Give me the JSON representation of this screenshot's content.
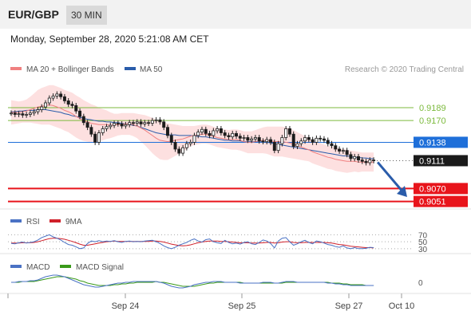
{
  "header": {
    "pair": "EUR/GBP",
    "timeframe": "30 MIN",
    "datetime": "Monday, September 28, 2020 5:21:08 AM CET"
  },
  "colors": {
    "ma20": "#f08080",
    "bollinger_fill": "#fde0e0",
    "ma50": "#2a5caa",
    "resistance": "#7cba3d",
    "pivot": "#1e6fd9",
    "support": "#e8141b",
    "last": "#1a1a1a",
    "rsi": "#4a72c4",
    "rsi_ma": "#d0202a",
    "macd": "#4a72c4",
    "macd_signal": "#3a9a1a",
    "candle_up": "#ffffff",
    "candle_down": "#1a1a1a"
  },
  "chart_data": [
    {
      "type": "candlestick",
      "legend": [
        {
          "name": "MA 20 + Bollinger Bands",
          "color": "#f08080"
        },
        {
          "name": "MA 50",
          "color": "#2a5caa"
        }
      ],
      "credit": "Research © 2020 Trading Central",
      "x_ticks": [
        "Sep 24",
        "Sep 25",
        "Sep 27",
        "Oct 10"
      ],
      "ylim": [
        0.904,
        0.923
      ],
      "levels": [
        {
          "label": "0.9189",
          "value": 0.9189,
          "kind": "resistance"
        },
        {
          "label": "0.9170",
          "value": 0.917,
          "kind": "resistance"
        },
        {
          "label": "0.9138",
          "value": 0.9138,
          "kind": "pivot"
        },
        {
          "label": "0.9111",
          "value": 0.9111,
          "kind": "last"
        },
        {
          "label": "0.9070",
          "value": 0.907,
          "kind": "support"
        },
        {
          "label": "0.9051",
          "value": 0.9051,
          "kind": "support"
        }
      ],
      "close": [
        0.9181,
        0.9179,
        0.918,
        0.9178,
        0.9179,
        0.9181,
        0.9183,
        0.9186,
        0.919,
        0.9196,
        0.9203,
        0.9206,
        0.9209,
        0.9205,
        0.9199,
        0.9194,
        0.9192,
        0.9184,
        0.9176,
        0.9167,
        0.916,
        0.915,
        0.9138,
        0.9152,
        0.9158,
        0.9161,
        0.9163,
        0.9166,
        0.9165,
        0.9162,
        0.9164,
        0.9167,
        0.9166,
        0.9168,
        0.9165,
        0.9167,
        0.9166,
        0.917,
        0.9171,
        0.9168,
        0.916,
        0.9148,
        0.9138,
        0.9128,
        0.9122,
        0.913,
        0.9136,
        0.9138,
        0.9148,
        0.9153,
        0.9157,
        0.9151,
        0.9148,
        0.9155,
        0.9158,
        0.9152,
        0.9148,
        0.9146,
        0.9151,
        0.9147,
        0.9144,
        0.9145,
        0.9141,
        0.9143,
        0.9145,
        0.914,
        0.9139,
        0.9142,
        0.9138,
        0.9126,
        0.9136,
        0.9145,
        0.9158,
        0.915,
        0.9132,
        0.9136,
        0.914,
        0.9145,
        0.9142,
        0.9138,
        0.9144,
        0.9143,
        0.9141,
        0.9136,
        0.9133,
        0.9128,
        0.9125,
        0.9126,
        0.912,
        0.9114,
        0.9117,
        0.9112,
        0.911,
        0.9108,
        0.9112,
        0.9111
      ],
      "ma20": [
        0.9182,
        0.9182,
        0.9182,
        0.9183,
        0.9184,
        0.9186,
        0.9188,
        0.919,
        0.9191,
        0.9192,
        0.9193,
        0.9192,
        0.919,
        0.9188,
        0.9185,
        0.9183,
        0.918,
        0.9176,
        0.9173,
        0.917,
        0.9168,
        0.9166,
        0.9165,
        0.9164,
        0.9164,
        0.9164,
        0.9163,
        0.9163,
        0.9164,
        0.9165,
        0.9165,
        0.9165,
        0.9164,
        0.9162,
        0.9159,
        0.9156,
        0.9152,
        0.9148,
        0.9144,
        0.9141,
        0.914,
        0.9139,
        0.914,
        0.9141,
        0.9142,
        0.9143,
        0.9145,
        0.9147,
        0.9148,
        0.9149,
        0.915,
        0.915,
        0.9149,
        0.9147,
        0.9145,
        0.9144,
        0.9143,
        0.9142,
        0.9142,
        0.9142,
        0.9141,
        0.9139,
        0.9138,
        0.9138,
        0.9139,
        0.914,
        0.9141,
        0.9141,
        0.914,
        0.9139,
        0.9139,
        0.9139,
        0.9138,
        0.9137,
        0.9135,
        0.9133,
        0.9131,
        0.9129,
        0.9127,
        0.9124,
        0.9122,
        0.912,
        0.9118,
        0.9116,
        0.9115,
        0.9113,
        0.9112,
        0.9111,
        0.911,
        0.911,
        0.911,
        0.9109,
        0.9109,
        0.9109,
        0.9109,
        0.9109
      ],
      "ma50": [
        0.9183,
        0.9183,
        0.9184,
        0.9184,
        0.9185,
        0.9185,
        0.9185,
        0.9186,
        0.9186,
        0.9186,
        0.9185,
        0.9184,
        0.9183,
        0.9182,
        0.918,
        0.9179,
        0.9177,
        0.9176,
        0.9175,
        0.9173,
        0.9172,
        0.9171,
        0.917,
        0.9169,
        0.9169,
        0.9168,
        0.9168,
        0.9167,
        0.9167,
        0.9166,
        0.9165,
        0.9164,
        0.9163,
        0.9162,
        0.916,
        0.9158,
        0.9156,
        0.9154,
        0.9152,
        0.9151,
        0.915,
        0.9149,
        0.9149,
        0.9149,
        0.9148,
        0.9148,
        0.9148,
        0.9148,
        0.9147,
        0.9147,
        0.9146,
        0.9146,
        0.9145,
        0.9144,
        0.9143,
        0.9142,
        0.9141,
        0.9141,
        0.914,
        0.914,
        0.914,
        0.9139,
        0.9139,
        0.9139,
        0.9139,
        0.9139,
        0.9138,
        0.9138,
        0.9137,
        0.9136,
        0.9135,
        0.9134,
        0.9133,
        0.9132,
        0.9131,
        0.913,
        0.9129,
        0.9128,
        0.9127,
        0.9126,
        0.9125,
        0.9124,
        0.9123,
        0.9122,
        0.9121,
        0.912,
        0.9119,
        0.9118,
        0.9118,
        0.9117,
        0.9116,
        0.9116,
        0.9115,
        0.9115,
        0.9114,
        0.9114
      ],
      "bb_width": [
        0.0018,
        0.0017,
        0.0016,
        0.0016,
        0.0017,
        0.0019,
        0.0022,
        0.0025,
        0.0027,
        0.0028,
        0.0029,
        0.003,
        0.003,
        0.003,
        0.003,
        0.003,
        0.0031,
        0.0031,
        0.0031,
        0.003,
        0.0029,
        0.0028,
        0.0027,
        0.0025,
        0.0023,
        0.0021,
        0.0019,
        0.0017,
        0.0016,
        0.0016,
        0.0016,
        0.0016,
        0.0017,
        0.0018,
        0.002,
        0.0022,
        0.0024,
        0.0026,
        0.0027,
        0.0028,
        0.0028,
        0.0027,
        0.0025,
        0.0023,
        0.0021,
        0.0019,
        0.0017,
        0.0015,
        0.0014,
        0.0014,
        0.0014,
        0.0014,
        0.0014,
        0.0014,
        0.0014,
        0.0014,
        0.0014,
        0.0014,
        0.0015,
        0.0015,
        0.0015,
        0.0015,
        0.0016,
        0.0016,
        0.0017,
        0.0018,
        0.0019,
        0.002,
        0.0021,
        0.0022,
        0.0022,
        0.0022,
        0.0022,
        0.0022,
        0.0021,
        0.002,
        0.0019,
        0.0018,
        0.0017,
        0.0017,
        0.0017,
        0.0017,
        0.0017,
        0.0017,
        0.0017,
        0.0017,
        0.0017,
        0.0017,
        0.0017,
        0.0016,
        0.0015,
        0.0015,
        0.0014,
        0.0014,
        0.0014,
        0.0014
      ]
    },
    {
      "type": "line",
      "legend": [
        {
          "name": "RSI",
          "color": "#4a72c4"
        },
        {
          "name": "9MA",
          "color": "#d0202a"
        }
      ],
      "y_ticks": [
        "70",
        "50",
        "30"
      ],
      "ylim": [
        25,
        80
      ],
      "rsi": [
        45,
        44,
        47,
        49,
        46,
        48,
        50,
        55,
        62,
        66,
        70,
        64,
        60,
        55,
        48,
        42,
        40,
        35,
        30,
        32,
        45,
        52,
        50,
        53,
        50,
        52,
        51,
        53,
        50,
        48,
        51,
        52,
        50,
        51,
        50,
        52,
        53,
        54,
        50,
        45,
        38,
        33,
        30,
        34,
        40,
        44,
        48,
        54,
        58,
        52,
        49,
        56,
        58,
        50,
        47,
        45,
        54,
        48,
        44,
        46,
        43,
        48,
        50,
        44,
        42,
        48,
        55,
        52,
        45,
        32,
        52,
        60,
        62,
        50,
        40,
        44,
        50,
        54,
        48,
        44,
        52,
        50,
        46,
        42,
        40,
        36,
        34,
        38,
        32,
        30,
        33,
        30,
        30,
        31,
        34,
        33
      ],
      "rsi_ma": [
        46,
        46,
        46,
        47,
        47,
        47,
        48,
        50,
        53,
        56,
        59,
        60,
        60,
        59,
        57,
        54,
        51,
        47,
        43,
        40,
        40,
        42,
        44,
        46,
        48,
        50,
        51,
        52,
        51,
        51,
        51,
        51,
        51,
        51,
        51,
        51,
        51,
        52,
        52,
        51,
        49,
        46,
        43,
        41,
        39,
        38,
        39,
        41,
        44,
        47,
        49,
        51,
        52,
        52,
        52,
        51,
        51,
        50,
        49,
        48,
        47,
        47,
        47,
        46,
        46,
        46,
        47,
        48,
        48,
        46,
        47,
        49,
        50,
        50,
        48,
        47,
        47,
        48,
        48,
        48,
        48,
        48,
        48,
        47,
        46,
        44,
        42,
        41,
        39,
        37,
        36,
        35,
        34,
        33,
        33,
        32
      ]
    },
    {
      "type": "line",
      "legend": [
        {
          "name": "MACD",
          "color": "#4a72c4"
        },
        {
          "name": "MACD Signal",
          "color": "#3a9a1a"
        }
      ],
      "y_ticks": [
        "0"
      ],
      "ylim": [
        -0.0012,
        0.0012
      ],
      "macd": [
        0.0,
        0.0,
        0.0001,
        0.0001,
        0.0001,
        0.0002,
        0.0002,
        0.0003,
        0.0005,
        0.0007,
        0.0008,
        0.0009,
        0.0009,
        0.0008,
        0.0007,
        0.0005,
        0.0003,
        0.0001,
        -0.0001,
        -0.0003,
        -0.0004,
        -0.0005,
        -0.0006,
        -0.0006,
        -0.0005,
        -0.0004,
        -0.0003,
        -0.0002,
        -0.0001,
        -0.0001,
        0.0,
        0.0,
        0.0001,
        0.0001,
        0.0001,
        0.0001,
        0.0001,
        0.0001,
        0.0001,
        0.0,
        -0.0001,
        -0.0003,
        -0.0005,
        -0.0006,
        -0.0007,
        -0.0007,
        -0.0006,
        -0.0005,
        -0.0003,
        -0.0002,
        -0.0001,
        0.0,
        0.0,
        0.0001,
        0.0001,
        0.0001,
        0.0,
        0.0,
        0.0,
        0.0,
        -0.0001,
        -0.0001,
        -0.0001,
        -0.0001,
        -0.0001,
        -0.0001,
        0.0,
        0.0,
        0.0,
        -0.0001,
        -0.0001,
        0.0,
        0.0001,
        0.0001,
        0.0001,
        0.0,
        0.0,
        0.0,
        0.0,
        0.0,
        0.0,
        0.0,
        0.0,
        -0.0001,
        -0.0001,
        -0.0002,
        -0.0002,
        -0.0003,
        -0.0003,
        -0.0004,
        -0.0004,
        -0.0004,
        -0.0004,
        -0.0004,
        -0.0004,
        -0.0004
      ],
      "signal": [
        0.0,
        0.0,
        0.0,
        0.0001,
        0.0001,
        0.0001,
        0.0001,
        0.0002,
        0.0003,
        0.0004,
        0.0005,
        0.0006,
        0.0007,
        0.0007,
        0.0007,
        0.0006,
        0.0005,
        0.0004,
        0.0002,
        0.0001,
        -0.0001,
        -0.0002,
        -0.0003,
        -0.0004,
        -0.0004,
        -0.0004,
        -0.0004,
        -0.0003,
        -0.0003,
        -0.0002,
        -0.0002,
        -0.0001,
        -0.0001,
        0.0,
        0.0,
        0.0,
        0.0,
        0.0,
        0.0001,
        0.0,
        0.0,
        -0.0001,
        -0.0002,
        -0.0003,
        -0.0004,
        -0.0005,
        -0.0005,
        -0.0005,
        -0.0005,
        -0.0004,
        -0.0003,
        -0.0002,
        -0.0001,
        -0.0001,
        0.0,
        0.0,
        0.0,
        0.0,
        0.0,
        0.0,
        0.0,
        -0.0001,
        -0.0001,
        -0.0001,
        -0.0001,
        -0.0001,
        -0.0001,
        -0.0001,
        -0.0001,
        -0.0001,
        -0.0001,
        -0.0001,
        0.0,
        0.0,
        0.0,
        0.0,
        0.0,
        0.0,
        0.0,
        0.0,
        0.0,
        0.0,
        0.0,
        0.0,
        -0.0001,
        -0.0001,
        -0.0001,
        -0.0002,
        -0.0002,
        -0.0003,
        -0.0003,
        -0.0003,
        -0.0003,
        -0.0004,
        -0.0004,
        -0.0004
      ]
    }
  ]
}
